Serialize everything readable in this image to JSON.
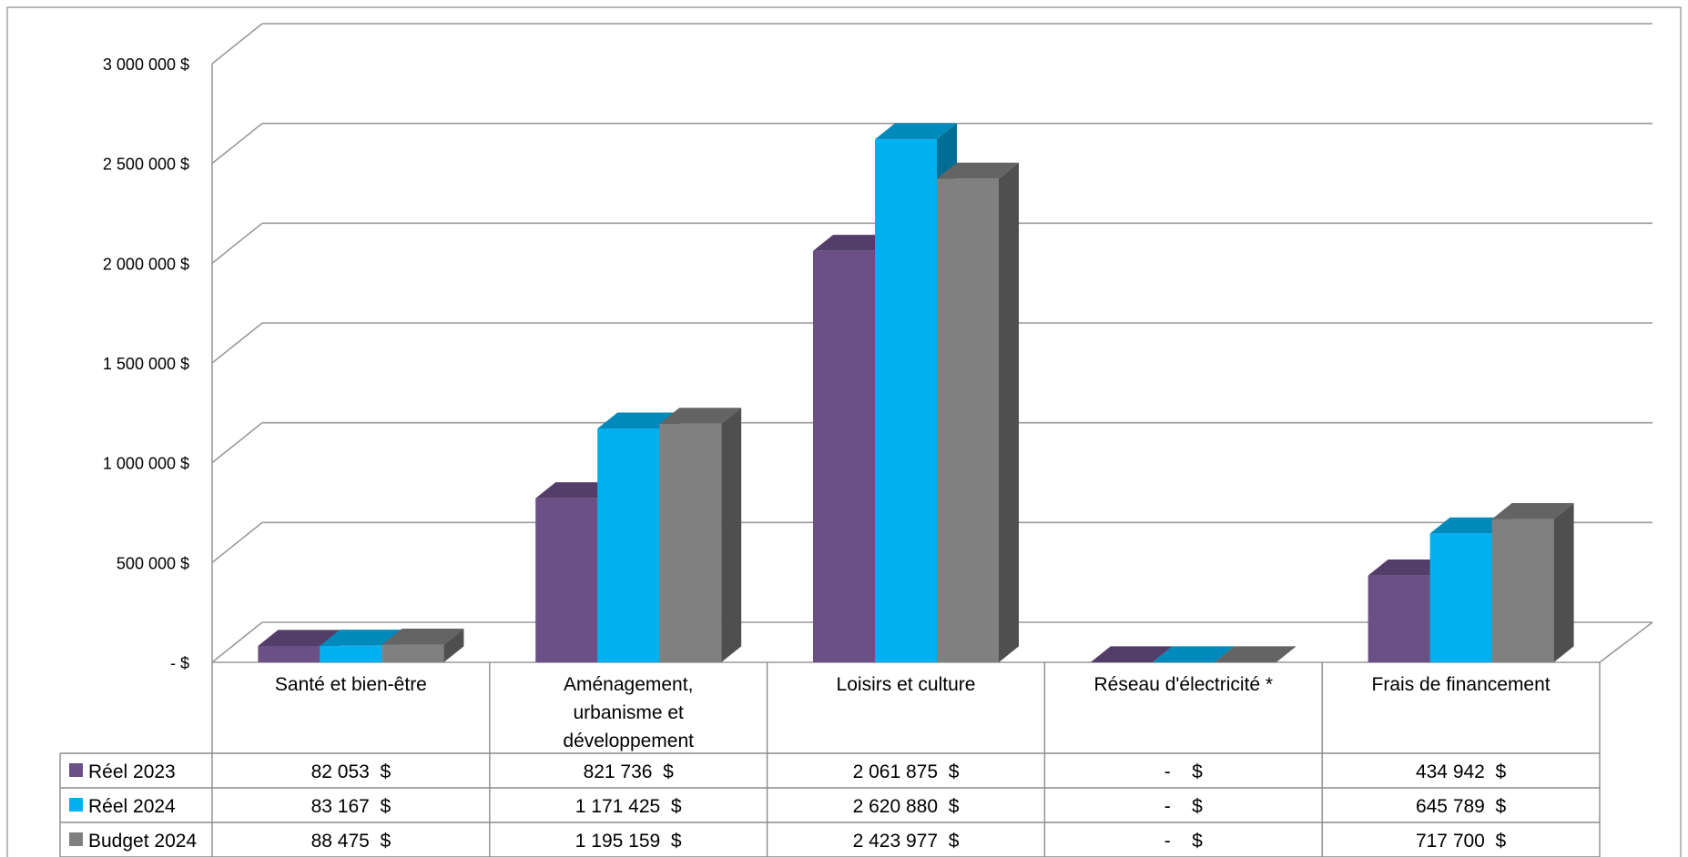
{
  "chart_data": {
    "type": "bar",
    "title": "",
    "xlabel": "",
    "ylabel": "",
    "ylim": [
      0,
      3000000
    ],
    "y_tick_values": [
      0,
      500000,
      1000000,
      1500000,
      2000000,
      2500000,
      3000000
    ],
    "y_tick_labels": [
      "-  $",
      "500 000  $",
      "1 000 000  $",
      "1 500 000  $",
      "2 000 000  $",
      "2 500 000  $",
      "3 000 000  $"
    ],
    "grid": true,
    "legend_placement": "data-table-left",
    "categories": [
      "Santé et bien-être",
      "Aménagement, urbanisme et développement",
      "Loisirs et culture",
      "Réseau d'électricité *",
      "Frais de financement"
    ],
    "category_label_lines": [
      [
        "Santé et bien-être"
      ],
      [
        "Aménagement,",
        "urbanisme et",
        "développement"
      ],
      [
        "Loisirs et culture"
      ],
      [
        "Réseau d'électricité *"
      ],
      [
        "Frais de financement"
      ]
    ],
    "series": [
      {
        "name": "Réel 2023",
        "color": "#6B5086",
        "values": [
          82053,
          821736,
          2061875,
          0,
          434942
        ],
        "labels": [
          "82 053  $",
          "821 736  $",
          "2 061 875  $",
          "-    $",
          "434 942  $"
        ]
      },
      {
        "name": "Réel 2024",
        "color": "#00B0F0",
        "values": [
          83167,
          1171425,
          2620880,
          0,
          645789
        ],
        "labels": [
          "83 167  $",
          "1 171 425  $",
          "2 620 880  $",
          "-    $",
          "645 789  $"
        ]
      },
      {
        "name": "Budget 2024",
        "color": "#808080",
        "values": [
          88475,
          1195159,
          2423977,
          0,
          717700
        ],
        "labels": [
          "88 475  $",
          "1 195 159  $",
          "2 423 977  $",
          "-    $",
          "717 700  $"
        ]
      }
    ]
  }
}
